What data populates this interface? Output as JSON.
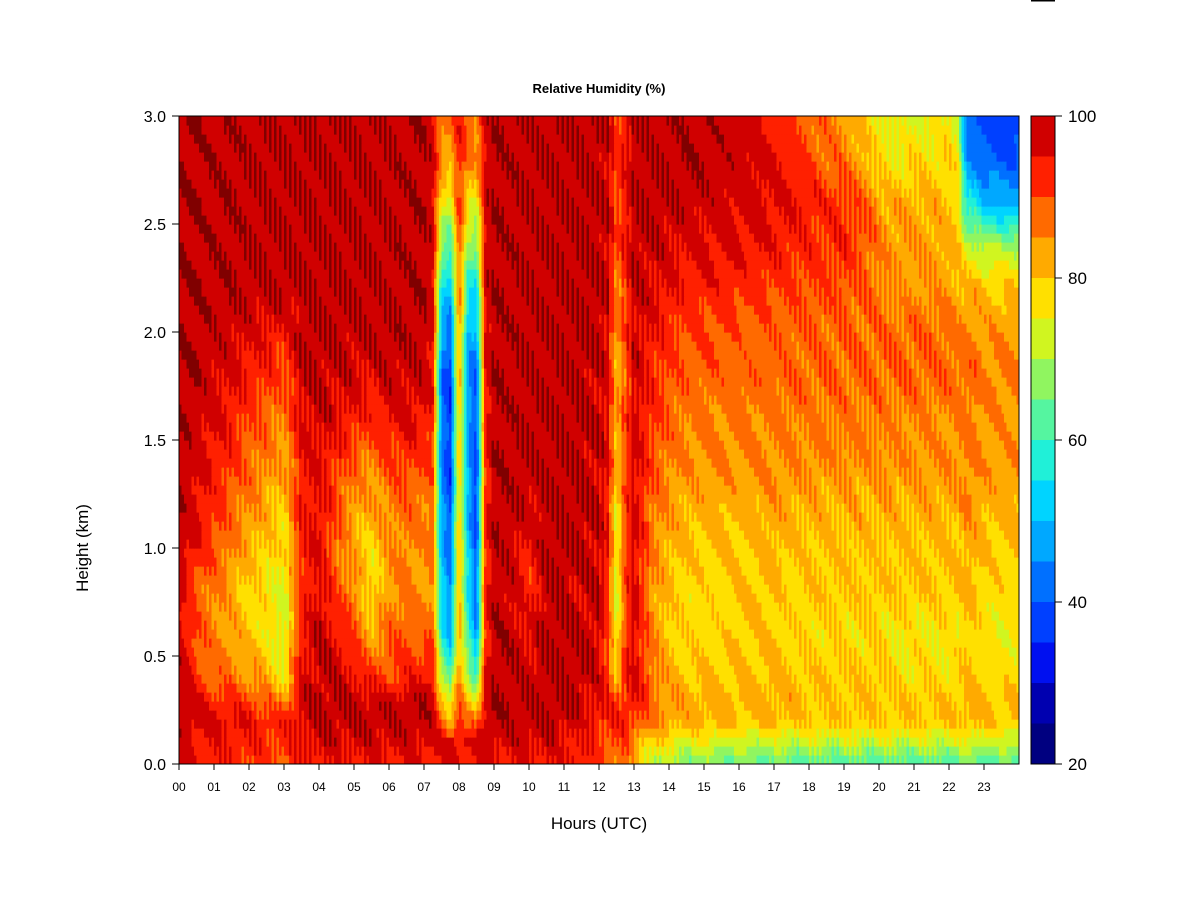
{
  "chart_data": {
    "type": "heatmap",
    "title": "Relative Humidity (%)",
    "xlabel": "Hours (UTC)",
    "ylabel": "Height (km)",
    "x_ticks": [
      "00",
      "01",
      "02",
      "03",
      "04",
      "05",
      "06",
      "07",
      "08",
      "09",
      "10",
      "11",
      "12",
      "13",
      "14",
      "15",
      "16",
      "17",
      "18",
      "19",
      "20",
      "21",
      "22",
      "23"
    ],
    "xlim": [
      0,
      24
    ],
    "y_ticks": [
      "0.0",
      "0.5",
      "1.0",
      "1.5",
      "2.0",
      "2.5",
      "3.0"
    ],
    "ylim": [
      0,
      3
    ],
    "colorbar": {
      "ticks": [
        "20",
        "40",
        "60",
        "80",
        "100"
      ],
      "range": [
        20,
        100
      ],
      "levels": [
        20,
        25,
        30,
        35,
        40,
        45,
        50,
        55,
        60,
        65,
        70,
        75,
        80,
        85,
        90,
        95,
        100
      ],
      "colors": [
        "#000080",
        "#0000b0",
        "#0010f0",
        "#0040ff",
        "#0070ff",
        "#00a8ff",
        "#00d4ff",
        "#20f0d8",
        "#55f5a0",
        "#90f560",
        "#d0f520",
        "#ffe000",
        "#ffaa00",
        "#ff6a00",
        "#ff2000",
        "#d00000",
        "#800000"
      ]
    },
    "rh_rows": {
      "height_km": [
        0.0,
        0.1,
        0.2,
        0.3,
        0.4,
        0.6,
        0.8,
        1.0,
        1.2,
        1.4,
        1.6,
        1.8,
        2.0,
        2.2,
        2.4,
        2.6,
        2.8,
        3.0
      ],
      "hours": [
        0,
        0.5,
        1,
        1.5,
        2,
        2.5,
        3,
        3.5,
        4,
        4.5,
        5,
        5.5,
        6,
        6.5,
        7,
        7.25,
        7.5,
        7.75,
        8,
        8.25,
        8.5,
        8.75,
        9,
        9.5,
        10,
        10.5,
        11,
        11.5,
        12,
        12.25,
        12.5,
        12.75,
        13,
        13.5,
        14,
        14.5,
        15,
        15.5,
        16,
        16.5,
        17,
        17.5,
        18,
        18.5,
        19,
        19.5,
        20,
        20.5,
        21,
        21.5,
        22,
        22.25,
        22.5,
        22.75,
        23,
        23.5,
        23.9
      ],
      "values": [
        [
          96,
          94,
          93,
          93,
          92,
          90,
          89,
          93,
          94,
          94,
          94,
          94,
          94,
          94,
          94,
          94,
          94,
          95,
          94,
          95,
          94,
          95,
          95,
          94,
          94,
          95,
          95,
          94,
          90,
          88,
          88,
          88,
          80,
          72,
          68,
          66,
          66,
          65,
          64,
          64,
          64,
          62,
          62,
          62,
          62,
          62,
          62,
          62,
          62,
          62,
          62,
          62,
          63,
          63,
          62,
          62,
          62
        ],
        [
          98,
          95,
          94,
          94,
          93,
          92,
          92,
          96,
          97,
          97,
          97,
          97,
          97,
          97,
          97,
          97,
          96,
          97,
          97,
          97,
          96,
          97,
          97,
          97,
          97,
          97,
          95,
          94,
          92,
          90,
          90,
          90,
          84,
          78,
          76,
          74,
          74,
          73,
          72,
          72,
          72,
          72,
          72,
          72,
          72,
          72,
          72,
          72,
          72,
          72,
          72,
          73,
          74,
          73,
          72,
          72,
          72
        ],
        [
          99,
          97,
          97,
          96,
          95,
          94,
          92,
          98,
          99,
          99,
          99,
          99,
          99,
          99,
          99,
          98,
          88,
          82,
          92,
          85,
          88,
          98,
          99,
          99,
          99,
          99,
          99,
          96,
          94,
          93,
          92,
          93,
          92,
          86,
          84,
          82,
          82,
          82,
          80,
          80,
          82,
          80,
          80,
          80,
          80,
          80,
          80,
          80,
          80,
          80,
          80,
          80,
          82,
          82,
          80,
          80,
          80
        ],
        [
          99,
          96,
          92,
          92,
          90,
          88,
          84,
          97,
          99,
          99,
          98,
          98,
          97,
          98,
          99,
          97,
          82,
          74,
          88,
          80,
          76,
          97,
          99,
          99,
          99,
          99,
          99,
          98,
          96,
          94,
          90,
          94,
          96,
          88,
          84,
          82,
          82,
          82,
          82,
          82,
          82,
          82,
          80,
          80,
          80,
          80,
          80,
          80,
          80,
          80,
          80,
          80,
          82,
          82,
          80,
          80,
          80
        ],
        [
          99,
          92,
          88,
          87,
          84,
          82,
          77,
          95,
          99,
          98,
          96,
          92,
          90,
          93,
          95,
          95,
          70,
          62,
          86,
          72,
          60,
          95,
          99,
          99,
          98,
          99,
          99,
          99,
          96,
          92,
          82,
          92,
          97,
          88,
          82,
          80,
          80,
          80,
          80,
          80,
          82,
          80,
          80,
          80,
          80,
          80,
          80,
          78,
          78,
          78,
          78,
          78,
          80,
          80,
          78,
          78,
          78
        ],
        [
          98,
          90,
          86,
          84,
          80,
          78,
          72,
          94,
          99,
          95,
          90,
          82,
          88,
          90,
          88,
          88,
          58,
          48,
          82,
          60,
          45,
          92,
          99,
          99,
          96,
          99,
          99,
          99,
          98,
          90,
          74,
          90,
          97,
          86,
          80,
          78,
          78,
          78,
          80,
          80,
          80,
          78,
          78,
          78,
          78,
          78,
          78,
          76,
          76,
          76,
          76,
          76,
          80,
          78,
          76,
          76,
          76
        ],
        [
          97,
          88,
          86,
          82,
          78,
          76,
          74,
          92,
          96,
          90,
          86,
          76,
          84,
          86,
          84,
          86,
          52,
          45,
          84,
          56,
          42,
          92,
          99,
          97,
          92,
          99,
          99,
          97,
          98,
          92,
          72,
          90,
          97,
          84,
          80,
          78,
          78,
          78,
          80,
          80,
          80,
          78,
          80,
          80,
          80,
          80,
          80,
          80,
          80,
          80,
          80,
          80,
          82,
          80,
          78,
          78,
          78
        ],
        [
          99,
          94,
          90,
          86,
          82,
          80,
          76,
          94,
          96,
          88,
          82,
          78,
          84,
          86,
          84,
          88,
          50,
          42,
          82,
          52,
          40,
          92,
          99,
          98,
          94,
          99,
          99,
          99,
          98,
          93,
          74,
          90,
          97,
          86,
          82,
          80,
          80,
          80,
          80,
          80,
          82,
          80,
          80,
          80,
          80,
          80,
          80,
          80,
          80,
          80,
          80,
          80,
          82,
          82,
          80,
          80,
          80
        ],
        [
          99,
          96,
          92,
          88,
          86,
          82,
          80,
          94,
          95,
          90,
          84,
          82,
          86,
          88,
          86,
          88,
          46,
          38,
          80,
          50,
          36,
          92,
          99,
          99,
          98,
          99,
          99,
          99,
          98,
          94,
          76,
          90,
          97,
          88,
          84,
          82,
          82,
          82,
          82,
          82,
          84,
          82,
          82,
          82,
          82,
          82,
          82,
          82,
          82,
          82,
          82,
          82,
          86,
          84,
          82,
          82,
          82
        ],
        [
          99,
          97,
          94,
          92,
          88,
          86,
          82,
          95,
          96,
          92,
          88,
          86,
          90,
          92,
          90,
          90,
          44,
          36,
          80,
          48,
          38,
          92,
          99,
          99,
          99,
          99,
          99,
          99,
          98,
          95,
          80,
          90,
          97,
          90,
          86,
          85,
          85,
          85,
          85,
          85,
          85,
          85,
          85,
          85,
          85,
          85,
          85,
          85,
          85,
          85,
          85,
          85,
          86,
          86,
          84,
          84,
          84
        ],
        [
          99,
          98,
          96,
          94,
          90,
          88,
          86,
          96,
          98,
          96,
          94,
          92,
          95,
          96,
          95,
          93,
          44,
          36,
          82,
          48,
          38,
          94,
          99,
          99,
          99,
          99,
          99,
          99,
          98,
          96,
          82,
          90,
          97,
          92,
          88,
          86,
          86,
          86,
          86,
          86,
          86,
          86,
          86,
          86,
          86,
          86,
          86,
          85,
          85,
          85,
          85,
          85,
          86,
          86,
          84,
          84,
          84
        ],
        [
          99,
          99,
          97,
          96,
          94,
          92,
          90,
          98,
          99,
          98,
          97,
          96,
          98,
          98,
          98,
          95,
          42,
          36,
          84,
          46,
          40,
          95,
          99,
          99,
          99,
          99,
          99,
          99,
          98,
          96,
          80,
          88,
          97,
          93,
          90,
          88,
          88,
          88,
          88,
          88,
          88,
          88,
          88,
          88,
          88,
          88,
          88,
          88,
          88,
          88,
          88,
          88,
          88,
          88,
          86,
          86,
          86
        ],
        [
          99,
          99,
          98,
          98,
          96,
          96,
          94,
          99,
          99,
          99,
          99,
          99,
          99,
          99,
          99,
          96,
          48,
          42,
          86,
          50,
          48,
          96,
          99,
          99,
          99,
          99,
          99,
          99,
          99,
          97,
          84,
          90,
          98,
          95,
          92,
          90,
          90,
          90,
          88,
          88,
          88,
          88,
          88,
          88,
          88,
          88,
          88,
          88,
          88,
          88,
          88,
          86,
          86,
          86,
          84,
          84,
          84
        ],
        [
          99,
          99,
          99,
          99,
          99,
          99,
          99,
          99,
          99,
          99,
          99,
          99,
          99,
          99,
          99,
          97,
          56,
          50,
          88,
          58,
          54,
          97,
          99,
          99,
          99,
          99,
          99,
          99,
          99,
          98,
          86,
          92,
          98,
          97,
          95,
          93,
          93,
          93,
          92,
          92,
          91,
          90,
          90,
          90,
          90,
          88,
          86,
          84,
          84,
          84,
          84,
          82,
          82,
          82,
          80,
          80,
          80
        ],
        [
          99,
          99,
          99,
          99,
          99,
          99,
          99,
          99,
          99,
          99,
          99,
          99,
          99,
          99,
          99,
          97,
          66,
          62,
          90,
          68,
          64,
          97,
          99,
          99,
          99,
          99,
          99,
          99,
          99,
          98,
          88,
          94,
          99,
          98,
          97,
          96,
          96,
          96,
          95,
          95,
          94,
          93,
          92,
          92,
          92,
          90,
          86,
          84,
          84,
          84,
          82,
          80,
          72,
          72,
          70,
          70,
          70
        ],
        [
          99,
          99,
          99,
          99,
          99,
          99,
          99,
          99,
          99,
          99,
          99,
          99,
          99,
          99,
          99,
          97,
          76,
          72,
          92,
          78,
          74,
          97,
          99,
          99,
          99,
          99,
          99,
          99,
          99,
          98,
          90,
          94,
          99,
          99,
          99,
          98,
          98,
          97,
          97,
          97,
          96,
          95,
          94,
          92,
          92,
          90,
          84,
          82,
          82,
          82,
          80,
          78,
          56,
          55,
          50,
          48,
          48
        ],
        [
          99,
          99,
          99,
          99,
          99,
          99,
          99,
          99,
          99,
          99,
          99,
          99,
          99,
          99,
          99,
          97,
          84,
          82,
          94,
          86,
          84,
          97,
          99,
          99,
          99,
          99,
          99,
          99,
          99,
          98,
          90,
          95,
          99,
          99,
          99,
          99,
          99,
          98,
          98,
          97,
          95,
          93,
          90,
          88,
          86,
          84,
          78,
          76,
          78,
          78,
          78,
          76,
          46,
          44,
          42,
          40,
          40
        ],
        [
          99,
          99,
          99,
          99,
          99,
          99,
          99,
          99,
          99,
          99,
          99,
          99,
          99,
          99,
          99,
          97,
          88,
          86,
          95,
          90,
          86,
          97,
          99,
          99,
          99,
          99,
          99,
          99,
          99,
          98,
          92,
          95,
          99,
          99,
          99,
          99,
          99,
          98,
          97,
          96,
          93,
          90,
          88,
          86,
          84,
          80,
          76,
          74,
          74,
          74,
          76,
          74,
          40,
          38,
          38,
          36,
          36
        ]
      ]
    }
  }
}
